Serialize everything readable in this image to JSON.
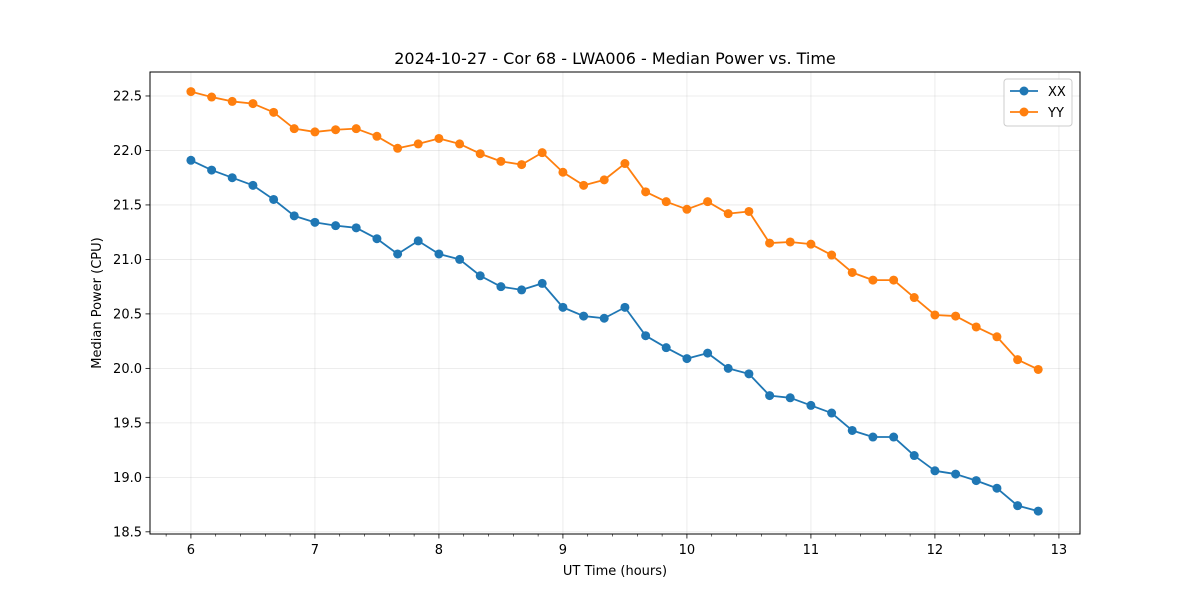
{
  "chart_data": {
    "type": "line",
    "title": "2024-10-27 - Cor 68 - LWA006 - Median Power vs. Time",
    "xlabel": "UT Time (hours)",
    "ylabel": "Median Power (CPU)",
    "xlim": [
      5.67,
      13.17
    ],
    "ylim": [
      18.48,
      22.72
    ],
    "xticks": [
      6,
      7,
      8,
      9,
      10,
      11,
      12,
      13
    ],
    "xtick_labels": [
      "6",
      "7",
      "8",
      "9",
      "10",
      "11",
      "12",
      "13"
    ],
    "yticks": [
      18.5,
      19.0,
      19.5,
      20.0,
      20.5,
      21.0,
      21.5,
      22.0,
      22.5
    ],
    "ytick_labels": [
      "18.5",
      "19.0",
      "19.5",
      "20.0",
      "20.5",
      "21.0",
      "21.5",
      "22.0",
      "22.5"
    ],
    "grid": true,
    "legend_position": "top-right",
    "x": [
      6.0,
      6.167,
      6.333,
      6.5,
      6.667,
      6.833,
      7.0,
      7.167,
      7.333,
      7.5,
      7.667,
      7.833,
      8.0,
      8.167,
      8.333,
      8.5,
      8.667,
      8.833,
      9.0,
      9.167,
      9.333,
      9.5,
      9.667,
      9.833,
      10.0,
      10.167,
      10.333,
      10.5,
      10.667,
      10.833,
      11.0,
      11.167,
      11.333,
      11.5,
      11.667,
      11.833,
      12.0,
      12.167,
      12.333,
      12.5,
      12.667,
      12.833
    ],
    "series": [
      {
        "name": "XX",
        "color": "#1f77b4",
        "values": [
          21.91,
          21.82,
          21.75,
          21.68,
          21.55,
          21.4,
          21.34,
          21.31,
          21.29,
          21.19,
          21.05,
          21.17,
          21.05,
          21.0,
          20.85,
          20.75,
          20.72,
          20.78,
          20.56,
          20.48,
          20.46,
          20.56,
          20.3,
          20.19,
          20.09,
          20.14,
          20.0,
          19.95,
          19.75,
          19.73,
          19.66,
          19.59,
          19.43,
          19.37,
          19.37,
          19.2,
          19.06,
          19.03,
          18.97,
          18.9,
          18.74,
          18.69
        ]
      },
      {
        "name": "YY",
        "color": "#ff7f0e",
        "values": [
          22.54,
          22.49,
          22.45,
          22.43,
          22.35,
          22.2,
          22.17,
          22.19,
          22.2,
          22.13,
          22.02,
          22.06,
          22.11,
          22.06,
          21.97,
          21.9,
          21.87,
          21.98,
          21.8,
          21.68,
          21.73,
          21.88,
          21.62,
          21.53,
          21.46,
          21.53,
          21.42,
          21.44,
          21.15,
          21.16,
          21.14,
          21.04,
          20.88,
          20.81,
          20.81,
          20.65,
          20.49,
          20.48,
          20.38,
          20.29,
          20.08,
          19.99
        ]
      }
    ]
  }
}
